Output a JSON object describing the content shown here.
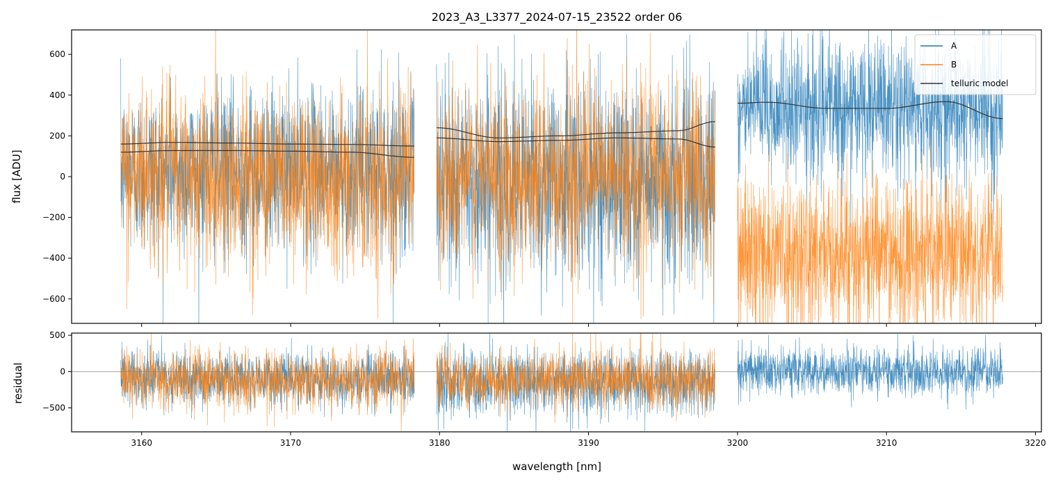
{
  "title": "2023_A3_L3377_2024-07-15_23522  order 06",
  "colors": {
    "A": "#1f77b4",
    "B": "#ff7f0e",
    "model": "#333333",
    "zero_line": "#888888"
  },
  "chart_data": [
    {
      "type": "line",
      "panel": "flux",
      "title": "2023_A3_L3377_2024-07-15_23522  order 06",
      "xlabel": "",
      "ylabel": "flux [ADU]",
      "xlim": [
        3155.3,
        3220.4
      ],
      "ylim": [
        -720,
        720
      ],
      "xticks": [
        3160,
        3170,
        3180,
        3190,
        3200,
        3210,
        3220
      ],
      "yticks": [
        -600,
        -400,
        -200,
        0,
        200,
        400,
        600
      ],
      "legend": {
        "placement": "top-right",
        "entries": [
          "A",
          "B",
          "telluric model"
        ]
      },
      "segments": [
        {
          "x_range": [
            3158.6,
            3178.3
          ],
          "A": {
            "mean": 25,
            "noise": 200
          },
          "B": {
            "mean": 10,
            "noise": 220
          },
          "telluric_model": [
            {
              "name": "A",
              "x": [
                3158.6,
                3162,
                3166,
                3170,
                3174,
                3178.3
              ],
              "y": [
                160,
                168,
                165,
                160,
                158,
                150
              ]
            },
            {
              "name": "B",
              "x": [
                3158.6,
                3162,
                3166,
                3170,
                3174,
                3178.3
              ],
              "y": [
                120,
                128,
                128,
                125,
                120,
                95
              ]
            }
          ]
        },
        {
          "x_range": [
            3179.8,
            3198.5
          ],
          "A": {
            "mean": -20,
            "noise": 250
          },
          "B": {
            "mean": 10,
            "noise": 230
          },
          "telluric_model": [
            {
              "name": "A",
              "x": [
                3179.8,
                3184,
                3188,
                3192,
                3196,
                3198.5
              ],
              "y": [
                240,
                190,
                200,
                215,
                225,
                270
              ]
            },
            {
              "name": "B",
              "x": [
                3179.8,
                3184,
                3188,
                3192,
                3196,
                3198.5
              ],
              "y": [
                190,
                172,
                178,
                190,
                185,
                145
              ]
            }
          ]
        },
        {
          "x_range": [
            3200,
            3217.8
          ],
          "A": {
            "mean": 330,
            "noise": 170
          },
          "B": {
            "mean": -380,
            "noise": 190
          },
          "telluric_model": [
            {
              "name": "A",
              "x": [
                3200,
                3202,
                3206,
                3210,
                3214,
                3217.8
              ],
              "y": [
                360,
                365,
                335,
                335,
                368,
                285
              ]
            }
          ]
        }
      ]
    },
    {
      "type": "line",
      "panel": "residual",
      "xlabel": "wavelength [nm]",
      "ylabel": "residual",
      "xlim": [
        3155.3,
        3220.4
      ],
      "ylim": [
        -830,
        530
      ],
      "xticks": [
        3160,
        3170,
        3180,
        3190,
        3200,
        3210,
        3220
      ],
      "yticks": [
        -500,
        0,
        500
      ],
      "zero_line": 0,
      "segments": [
        {
          "x_range": [
            3158.6,
            3178.3
          ],
          "A": {
            "mean": -90,
            "noise": 180
          },
          "B": {
            "mean": -110,
            "noise": 200
          }
        },
        {
          "x_range": [
            3179.8,
            3198.5
          ],
          "A": {
            "mean": -150,
            "noise": 230
          },
          "B": {
            "mean": -110,
            "noise": 200
          }
        },
        {
          "x_range": [
            3200,
            3217.8
          ],
          "A": {
            "mean": 0,
            "noise": 160
          }
        }
      ]
    }
  ]
}
